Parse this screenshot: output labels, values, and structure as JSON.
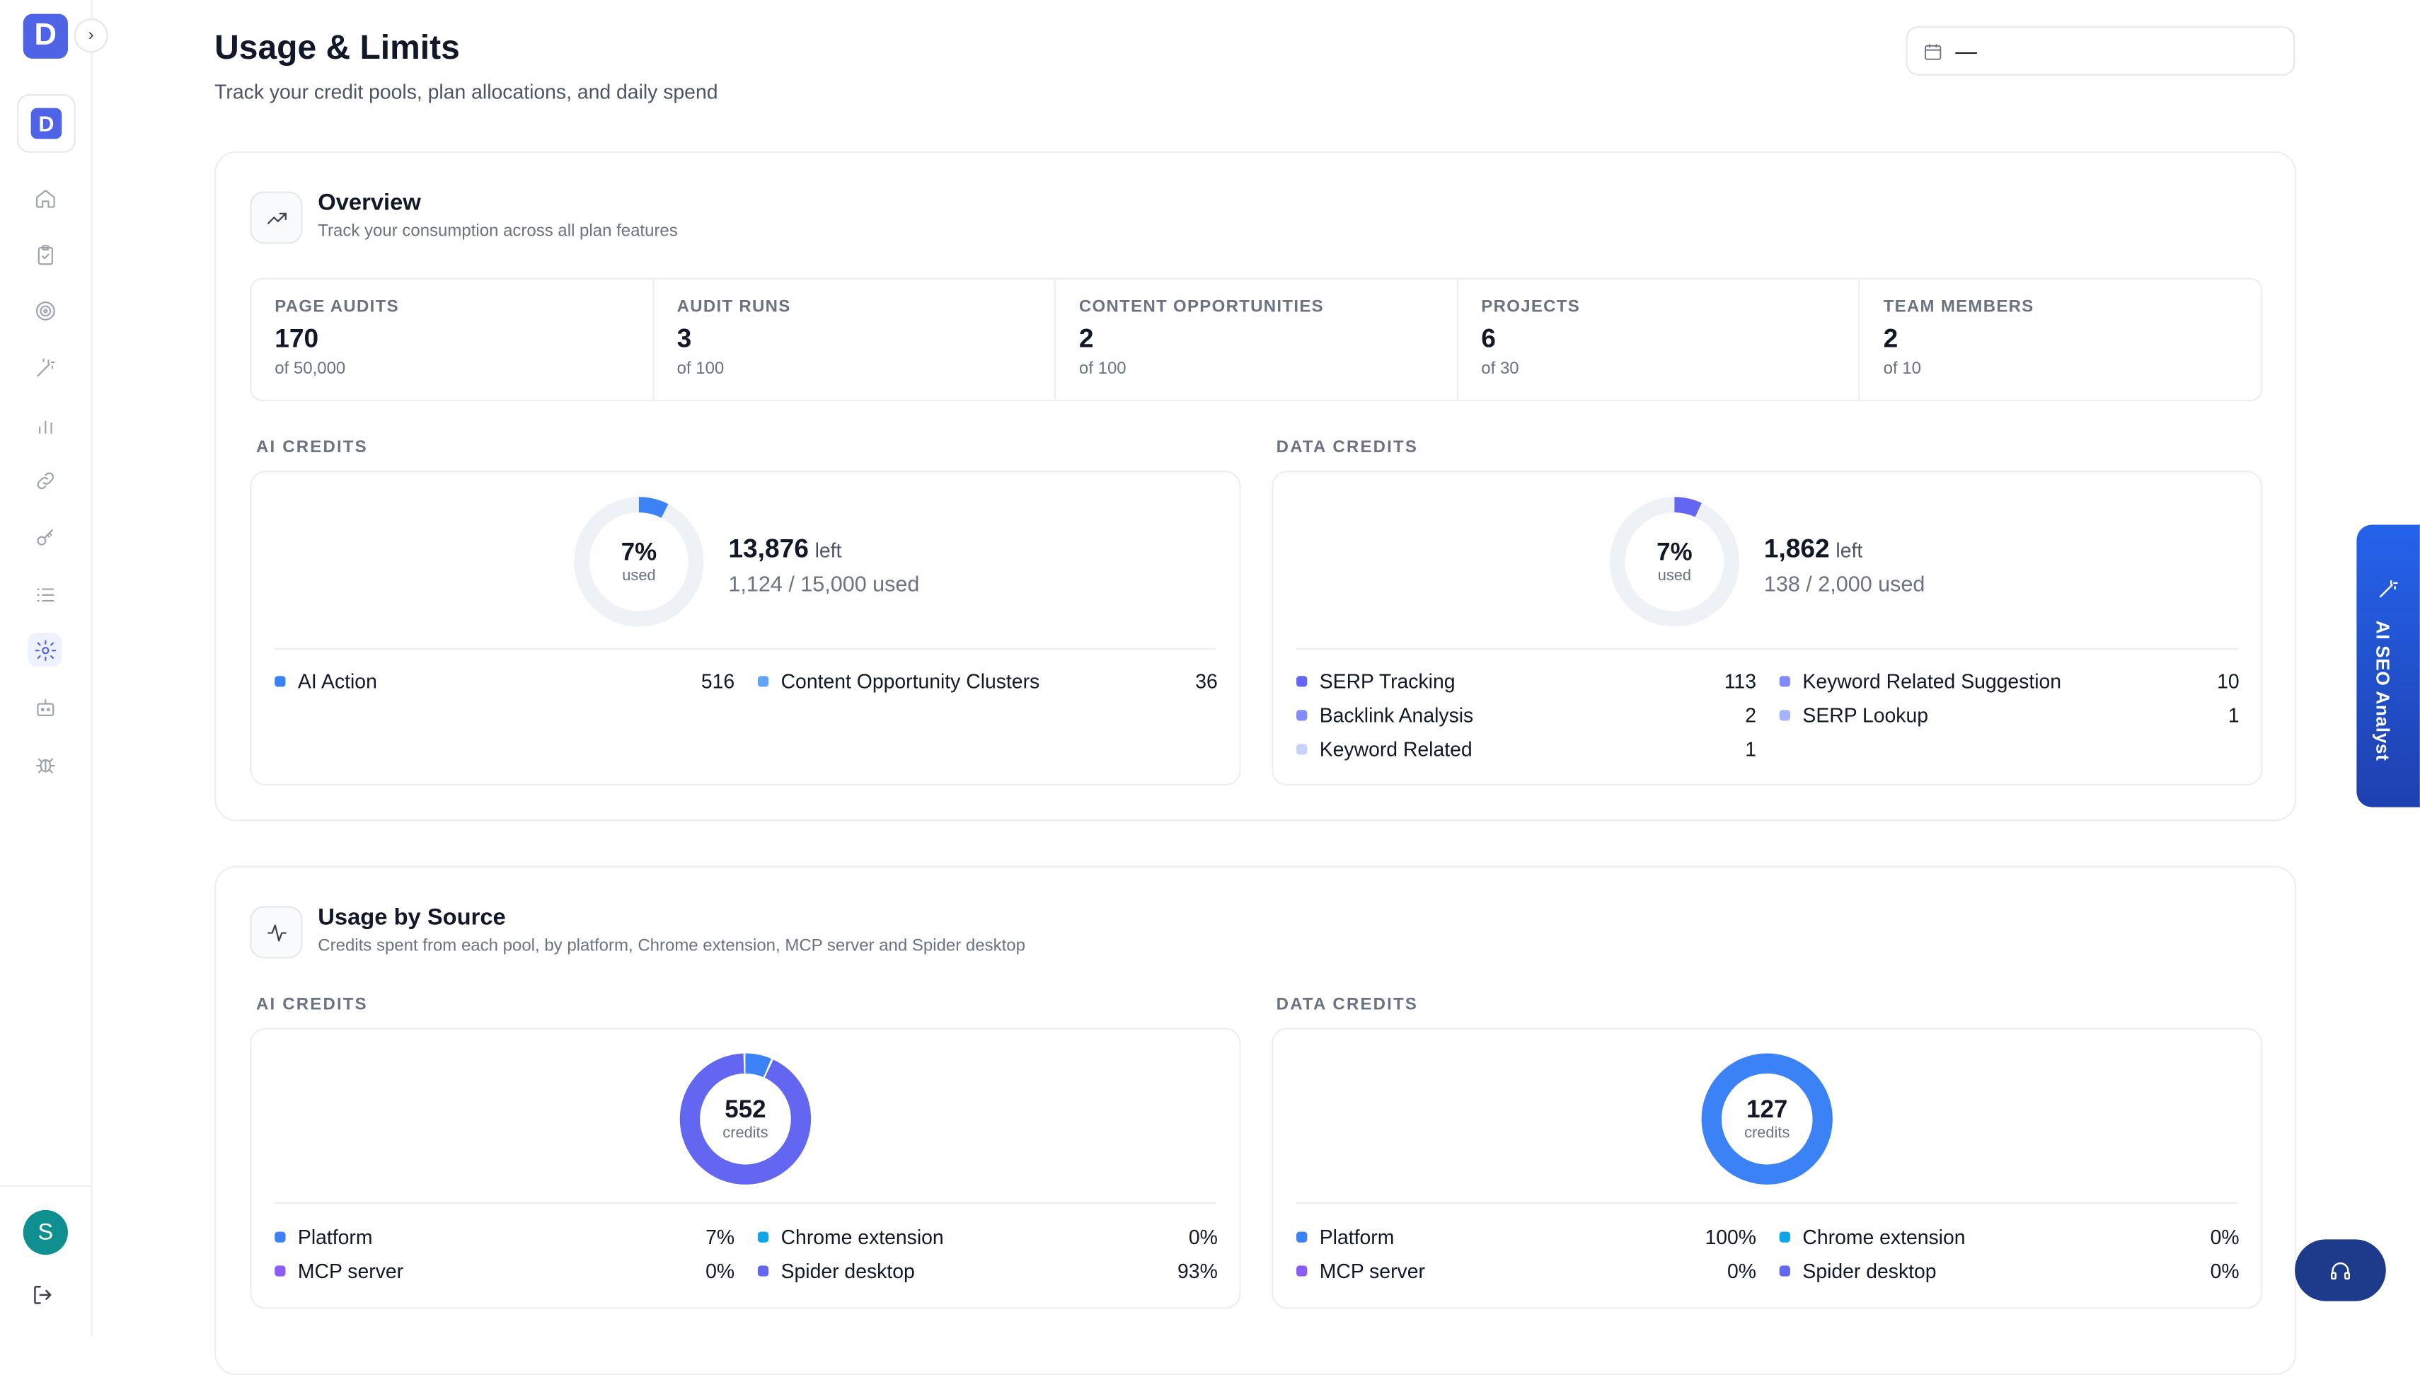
{
  "brand": {
    "letter": "D"
  },
  "user": {
    "initial": "S"
  },
  "header": {
    "title": "Usage & Limits",
    "subtitle": "Track your credit pools, plan allocations, and daily spend",
    "date_range": "—"
  },
  "overview": {
    "title": "Overview",
    "subtitle": "Track your consumption across all plan features",
    "stats": [
      {
        "label": "PAGE AUDITS",
        "value": "170",
        "of": "of 50,000"
      },
      {
        "label": "AUDIT RUNS",
        "value": "3",
        "of": "of 100"
      },
      {
        "label": "CONTENT OPPORTUNITIES",
        "value": "2",
        "of": "of 100"
      },
      {
        "label": "PROJECTS",
        "value": "6",
        "of": "of 30"
      },
      {
        "label": "TEAM MEMBERS",
        "value": "2",
        "of": "of 10"
      }
    ],
    "ai": {
      "label": "AI CREDITS",
      "pct": "7%",
      "used_caption": "used",
      "used_fraction": 0.075,
      "left": "13,876",
      "left_word": "left",
      "used_line": "1,124 / 15,000 used",
      "color": "#3b82f6",
      "items": [
        {
          "label": "AI Action",
          "value": "516",
          "color": "#3b82f6"
        },
        {
          "label": "Content Opportunity Clusters",
          "value": "36",
          "color": "#60a5fa"
        }
      ]
    },
    "data": {
      "label": "DATA CREDITS",
      "pct": "7%",
      "used_caption": "used",
      "used_fraction": 0.069,
      "left": "1,862",
      "left_word": "left",
      "used_line": "138 / 2,000 used",
      "color": "#6366f1",
      "items": [
        {
          "label": "SERP Tracking",
          "value": "113",
          "color": "#6366f1"
        },
        {
          "label": "Keyword Related Suggestion",
          "value": "10",
          "color": "#818cf8"
        },
        {
          "label": "Backlink Analysis",
          "value": "2",
          "color": "#818cf8"
        },
        {
          "label": "SERP Lookup",
          "value": "1",
          "color": "#a5b4fc"
        },
        {
          "label": "Keyword Related",
          "value": "1",
          "color": "#c7d2fe"
        }
      ]
    }
  },
  "by_source": {
    "title": "Usage by Source",
    "subtitle": "Credits spent from each pool, by platform, Chrome extension, MCP server and Spider desktop",
    "ai": {
      "label": "AI CREDITS",
      "total": "552",
      "caption": "credits",
      "segments": [
        {
          "label": "Platform",
          "value": "7%",
          "fraction": 0.07,
          "color": "#3b82f6"
        },
        {
          "label": "Chrome extension",
          "value": "0%",
          "fraction": 0.0,
          "color": "#0ea5e9"
        },
        {
          "label": "MCP server",
          "value": "0%",
          "fraction": 0.0,
          "color": "#8b5cf6"
        },
        {
          "label": "Spider desktop",
          "value": "93%",
          "fraction": 0.93,
          "color": "#6366f1"
        }
      ]
    },
    "data": {
      "label": "DATA CREDITS",
      "total": "127",
      "caption": "credits",
      "segments": [
        {
          "label": "Platform",
          "value": "100%",
          "fraction": 1.0,
          "color": "#3b82f6"
        },
        {
          "label": "Chrome extension",
          "value": "0%",
          "fraction": 0.0,
          "color": "#0ea5e9"
        },
        {
          "label": "MCP server",
          "value": "0%",
          "fraction": 0.0,
          "color": "#8b5cf6"
        },
        {
          "label": "Spider desktop",
          "value": "0%",
          "fraction": 0.0,
          "color": "#6366f1"
        }
      ]
    }
  },
  "assistant_tab": {
    "label": "AI SEO Analyst"
  },
  "nav_icons": [
    "home-icon",
    "clipboard-icon",
    "target-icon",
    "magic-wand-icon",
    "bar-chart-icon",
    "link-icon",
    "key-icon",
    "list-icon",
    "settings-icon",
    "bot-icon",
    "bug-icon"
  ]
}
